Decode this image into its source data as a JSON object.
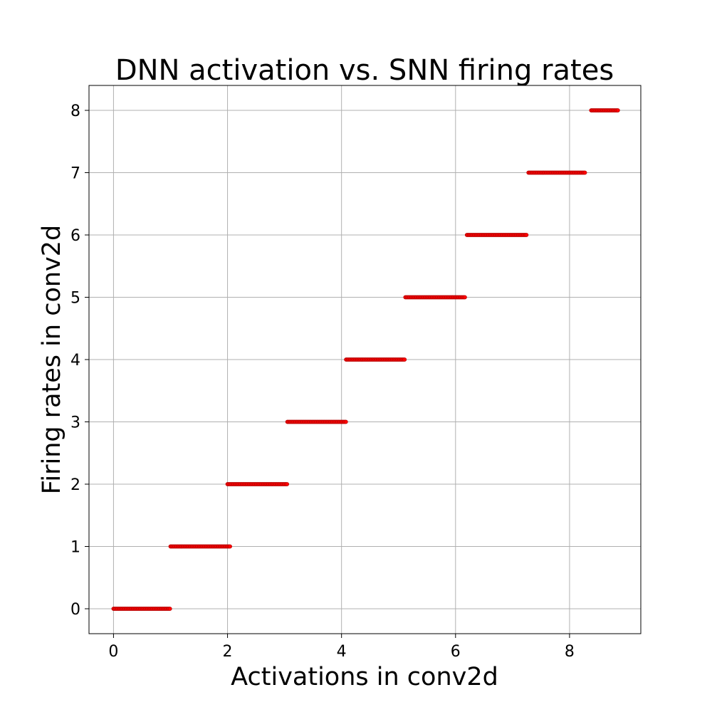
{
  "chart_data": {
    "type": "scatter",
    "title": "DNN activation vs. SNN firing rates",
    "xlabel": "Activations in conv2d",
    "ylabel": "Firing rates in conv2d",
    "xlim": [
      -0.43,
      9.25
    ],
    "ylim": [
      -0.4,
      8.4
    ],
    "xticks": [
      0,
      2,
      4,
      6,
      8
    ],
    "yticks": [
      0,
      1,
      2,
      3,
      4,
      5,
      6,
      7,
      8
    ],
    "grid": true,
    "marker_color": "#ff0000",
    "segments": [
      {
        "y": 0,
        "x_from": 0.0,
        "x_to": 1.0
      },
      {
        "y": 1,
        "x_from": 1.0,
        "x_to": 2.05
      },
      {
        "y": 2,
        "x_from": 2.0,
        "x_to": 3.05
      },
      {
        "y": 3,
        "x_from": 3.05,
        "x_to": 4.08
      },
      {
        "y": 4,
        "x_from": 4.08,
        "x_to": 5.12
      },
      {
        "y": 5,
        "x_from": 5.12,
        "x_to": 6.18
      },
      {
        "y": 6,
        "x_from": 6.2,
        "x_to": 7.25
      },
      {
        "y": 7,
        "x_from": 7.28,
        "x_to": 8.28
      },
      {
        "y": 8,
        "x_from": 8.38,
        "x_to": 8.85
      }
    ]
  }
}
